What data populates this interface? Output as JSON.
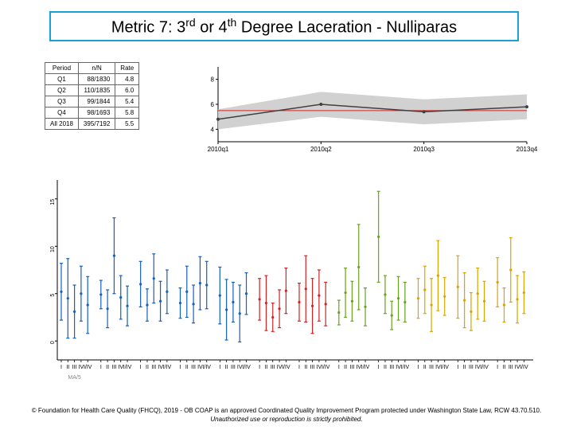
{
  "title": {
    "pre": "Metric 7: 3",
    "sup1": "rd",
    "mid": " or 4",
    "sup2": "th",
    "post": " Degree Laceration - Nulliparas"
  },
  "table": {
    "headers": [
      "Period",
      "n/N",
      "Rate"
    ],
    "rows": [
      [
        "Q1",
        "88/1830",
        "4.8"
      ],
      [
        "Q2",
        "110/1835",
        "6.0"
      ],
      [
        "Q3",
        "99/1844",
        "5.4"
      ],
      [
        "Q4",
        "98/1693",
        "5.8"
      ],
      [
        "All 2018",
        "395/7192",
        "5.5"
      ]
    ]
  },
  "trend": {
    "type": "line",
    "xlabels": [
      "2010q1",
      "2010q2",
      "2010q3",
      "2013q4"
    ],
    "yticks": [
      4,
      6,
      8
    ],
    "yticklabels": [
      "4",
      "6",
      "8"
    ],
    "ylim": [
      3,
      9
    ],
    "series": {
      "name": "rate",
      "values": [
        4.8,
        6.0,
        5.4,
        5.8
      ],
      "line_color": "#404040",
      "marker_color": "#404040",
      "marker_size": 4
    },
    "band": {
      "lower": [
        4.0,
        5.0,
        4.4,
        4.8
      ],
      "upper": [
        5.6,
        7.0,
        6.4,
        6.8
      ],
      "fill": "#cccccc",
      "opacity": 0.9
    },
    "reference_line": {
      "value": 5.5,
      "color": "#d22323",
      "width": 1
    },
    "style": {
      "background": "#ffffff",
      "grid_color": "#d0d0d0",
      "tick_fontsize": 8,
      "axis_color": "#000000",
      "tick_len": 3
    }
  },
  "errorbars": {
    "type": "ci_plot",
    "ylim": [
      -2,
      17
    ],
    "yticks": [
      0,
      5,
      10,
      15
    ],
    "yticklabels": [
      "0",
      "5",
      "10",
      "15"
    ],
    "groups": 12,
    "per_group_x": [
      "I",
      "II",
      "III",
      "IV",
      "I/IV"
    ],
    "group_label": "MA/5",
    "style": {
      "background": "#ffffff",
      "axis_color": "#000000",
      "tick_fontsize": 7,
      "cap_halfwidth": 2,
      "line_width": 1.2,
      "subtick_len": 3,
      "subtick_color": "#000000",
      "group_label_color": "#888888",
      "group_label_fontsize": 7
    },
    "series_colors": [
      "#1560bd",
      "#1560bd",
      "#1560bd",
      "#1560bd",
      "#1560bd",
      "#d22323",
      "#d22323",
      "#6aa121",
      "#6aa121",
      "#d9a400",
      "#d9a400",
      "#d9a400"
    ],
    "data": [
      {
        "mids": [
          5.2,
          4.5,
          3.1,
          5.0,
          3.8
        ],
        "errs": [
          3.0,
          4.2,
          2.8,
          2.9,
          3.0
        ]
      },
      {
        "mids": [
          4.9,
          3.4,
          9.0,
          4.6,
          3.7
        ],
        "errs": [
          1.5,
          2.0,
          4.0,
          2.3,
          2.1
        ]
      },
      {
        "mids": [
          6.0,
          3.8,
          6.6,
          4.2,
          5.2
        ],
        "errs": [
          2.4,
          1.7,
          2.6,
          2.1,
          2.3
        ]
      },
      {
        "mids": [
          4.0,
          5.2,
          3.9,
          6.1,
          5.9
        ],
        "errs": [
          1.6,
          2.7,
          2.0,
          2.8,
          2.5
        ]
      },
      {
        "mids": [
          4.8,
          3.3,
          4.1,
          2.9,
          5.0
        ],
        "errs": [
          3.0,
          3.2,
          2.1,
          3.0,
          2.2
        ]
      },
      {
        "mids": [
          4.4,
          4.0,
          2.5,
          3.4,
          5.3
        ],
        "errs": [
          2.2,
          2.9,
          1.5,
          2.0,
          2.4
        ]
      },
      {
        "mids": [
          4.1,
          5.5,
          3.7,
          4.8,
          3.9
        ],
        "errs": [
          2.0,
          3.5,
          2.9,
          2.7,
          2.3
        ]
      },
      {
        "mids": [
          3.0,
          5.1,
          4.2,
          7.8,
          3.6
        ],
        "errs": [
          1.3,
          2.6,
          2.1,
          4.5,
          2.0
        ]
      },
      {
        "mids": [
          11.0,
          4.9,
          2.7,
          4.5,
          4.1
        ],
        "errs": [
          4.8,
          2.0,
          1.5,
          2.3,
          2.1
        ]
      },
      {
        "mids": [
          4.5,
          5.4,
          3.8,
          6.9,
          4.7
        ],
        "errs": [
          2.1,
          2.5,
          2.8,
          3.7,
          2.0
        ]
      },
      {
        "mids": [
          5.7,
          4.3,
          3.1,
          5.0,
          4.2
        ],
        "errs": [
          3.3,
          2.9,
          2.0,
          2.7,
          2.1
        ]
      },
      {
        "mids": [
          6.2,
          3.8,
          7.5,
          4.4,
          5.1
        ],
        "errs": [
          2.6,
          1.8,
          3.4,
          2.5,
          2.2
        ]
      }
    ]
  },
  "footer": {
    "line1": "© Foundation for Health Care Quality (FHCQ), 2019 - OB COAP is an approved Coordinated Quality Improvement Program protected under Washington State Law, RCW 43.70.510.",
    "line2": "Unauthorized use or reproduction is strictly prohibited."
  }
}
